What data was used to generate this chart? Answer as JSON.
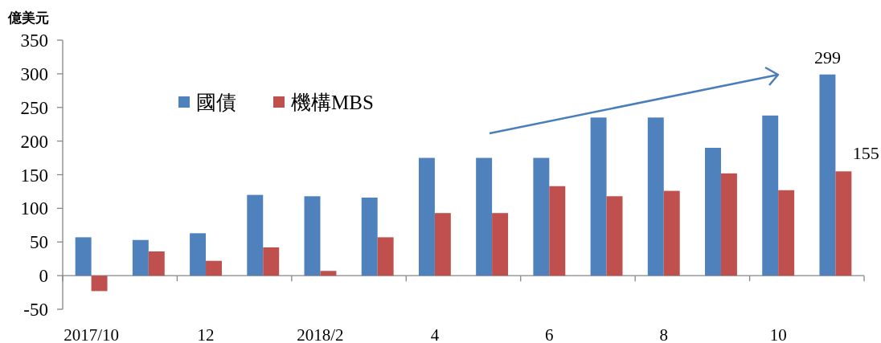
{
  "chart_data": {
    "type": "bar",
    "ylabel": "億美元",
    "categories": [
      "2017/10",
      null,
      "12",
      null,
      "2018/2",
      null,
      "4",
      null,
      "6",
      null,
      "8",
      null,
      "10",
      null
    ],
    "series": [
      {
        "name": "國債",
        "color": "#4f81bd",
        "values": [
          57,
          53,
          63,
          120,
          118,
          116,
          175,
          175,
          175,
          235,
          235,
          190,
          238,
          299
        ],
        "value_labels": [
          null,
          null,
          null,
          null,
          null,
          null,
          null,
          null,
          null,
          null,
          null,
          null,
          null,
          "299"
        ]
      },
      {
        "name": "機構MBS",
        "color": "#c0504d",
        "values": [
          -23,
          36,
          22,
          42,
          7,
          57,
          93,
          93,
          133,
          118,
          126,
          152,
          127,
          155
        ],
        "value_labels": [
          null,
          null,
          null,
          null,
          null,
          null,
          null,
          null,
          null,
          null,
          null,
          null,
          null,
          "155"
        ]
      }
    ],
    "ylim": [
      -50,
      350
    ],
    "yticks": [
      -50,
      0,
      50,
      100,
      150,
      200,
      250,
      300,
      350
    ],
    "legend": "top left"
  }
}
